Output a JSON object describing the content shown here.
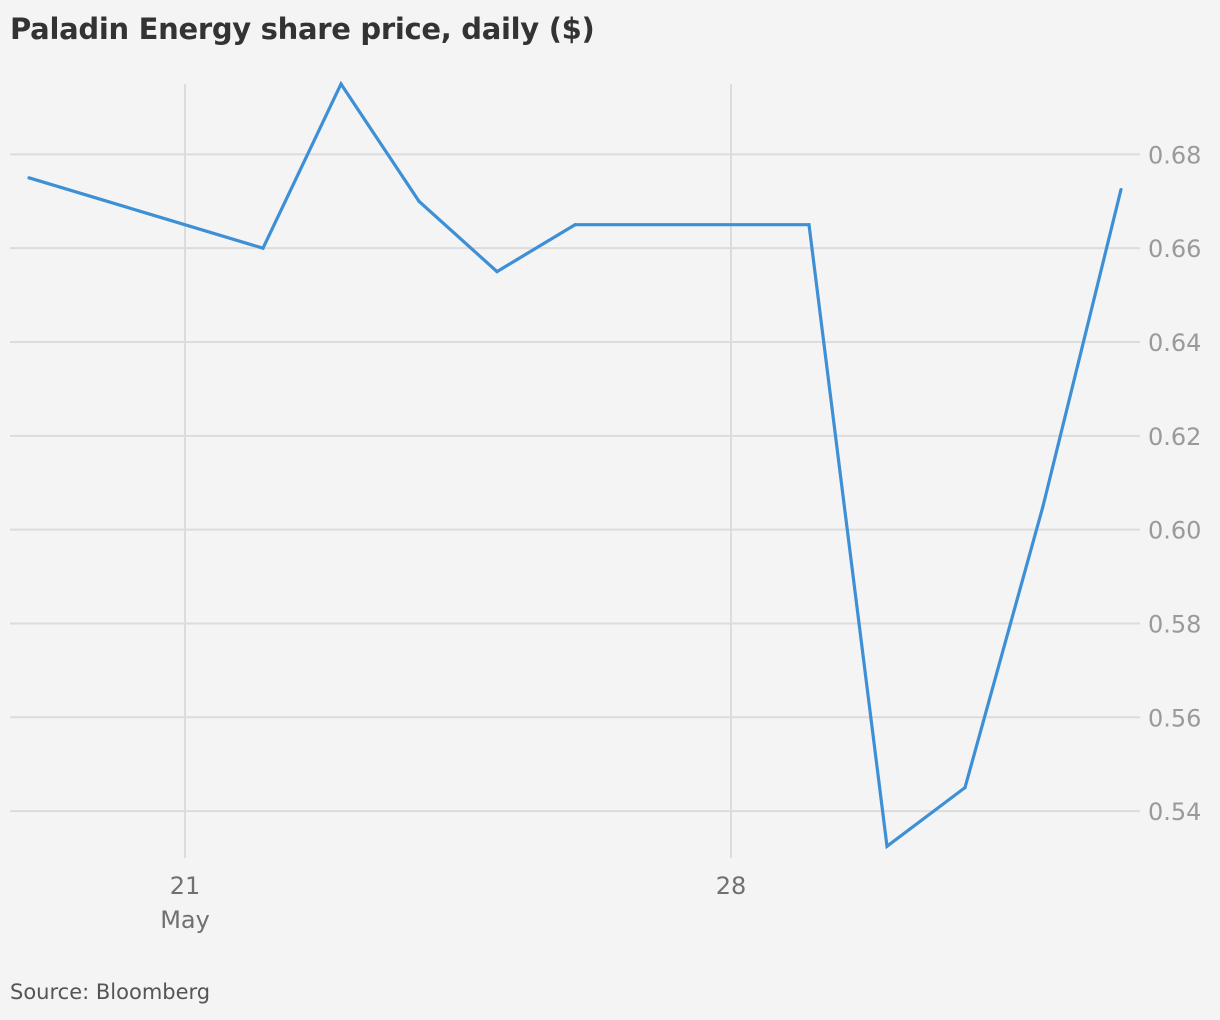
{
  "title": "Paladin Energy share price, daily ($)",
  "source": "Source: Bloomberg",
  "colors": {
    "background": "#f4f4f4",
    "line": "#3d8fd6",
    "grid": "#dcdcdc"
  },
  "chart_data": {
    "type": "line",
    "title": "Paladin Energy share price, daily ($)",
    "xlabel": "",
    "ylabel": "",
    "x": [
      "2018-05-19",
      "2018-05-22",
      "2018-05-23",
      "2018-05-24",
      "2018-05-25",
      "2018-05-26",
      "2018-05-29",
      "2018-05-30",
      "2018-05-31",
      "2018-06-01",
      "2018-06-02"
    ],
    "series": [
      {
        "name": "",
        "values": [
          0.675,
          0.66,
          0.695,
          0.67,
          0.655,
          0.665,
          0.665,
          0.5325,
          0.545,
          0.605,
          0.6725
        ]
      }
    ],
    "ylim": [
      0.53,
      0.695
    ],
    "yticks": [
      0.54,
      0.56,
      0.58,
      0.6,
      0.62,
      0.64,
      0.66,
      0.68
    ],
    "ytick_labels": [
      "0.54",
      "0.56",
      "0.58",
      "0.60",
      "0.62",
      "0.64",
      "0.66",
      "0.68"
    ],
    "y_axis_side": "right",
    "xticks": [
      {
        "date": "2018-05-21",
        "label": "21",
        "sublabel": "May"
      },
      {
        "date": "2018-05-28",
        "label": "28",
        "sublabel": ""
      }
    ],
    "grid": true,
    "legend": "none"
  }
}
